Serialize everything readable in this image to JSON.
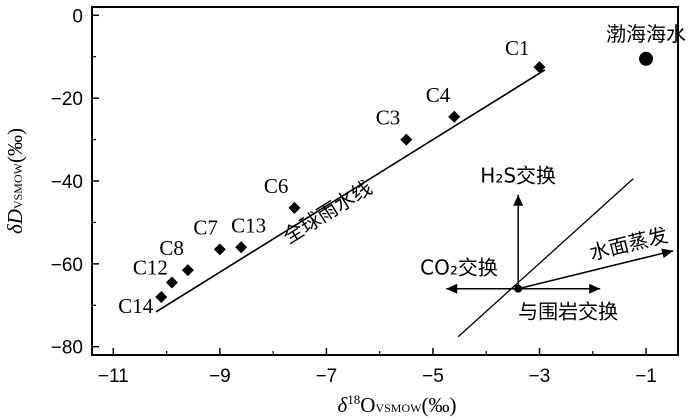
{
  "chart_data": {
    "type": "scatter",
    "xlabel": {
      "main": "δ",
      "sup": "18",
      "o": "O",
      "sub": "VSMOW",
      "unit": "(‰)"
    },
    "ylabel": {
      "main": "δD",
      "sub": "VSMOW",
      "unit": "(‰)"
    },
    "xlim": [
      -11.4,
      -0.4
    ],
    "ylim": [
      -82,
      2
    ],
    "xticks": [
      -11,
      -9,
      -7,
      -5,
      -3,
      -1
    ],
    "yticks": [
      0,
      -20,
      -40,
      -60,
      -80
    ],
    "xtick_labels": [
      "−11",
      "−9",
      "−7",
      "−5",
      "−3",
      "−1"
    ],
    "ytick_labels": [
      "0",
      "−20",
      "−40",
      "−60",
      "−80"
    ],
    "grid": false,
    "samples": [
      {
        "label": "C1",
        "x": -3.0,
        "y": -12.5
      },
      {
        "label": "C4",
        "x": -4.6,
        "y": -24.5
      },
      {
        "label": "C3",
        "x": -5.5,
        "y": -30.0
      },
      {
        "label": "C6",
        "x": -7.6,
        "y": -46.5
      },
      {
        "label": "C13",
        "x": -8.6,
        "y": -56.0
      },
      {
        "label": "C7",
        "x": -9.0,
        "y": -56.5
      },
      {
        "label": "C8",
        "x": -9.6,
        "y": -61.5
      },
      {
        "label": "C12",
        "x": -9.9,
        "y": -64.5
      },
      {
        "label": "C14",
        "x": -10.1,
        "y": -68.0
      }
    ],
    "seawater": {
      "label": "渤海海水",
      "x": -1.0,
      "y": -10.5
    },
    "gmwl": {
      "label": "全球雨水线",
      "x": [
        -10.2,
        -2.9
      ],
      "y": [
        -71.6,
        -13.2
      ]
    },
    "processes": {
      "origin": {
        "x": -3.4,
        "y": -66.0
      },
      "h2s": "H₂S交换",
      "co2": "CO₂交换",
      "rock": "与围岩交换",
      "evap": "水面蒸发"
    }
  }
}
